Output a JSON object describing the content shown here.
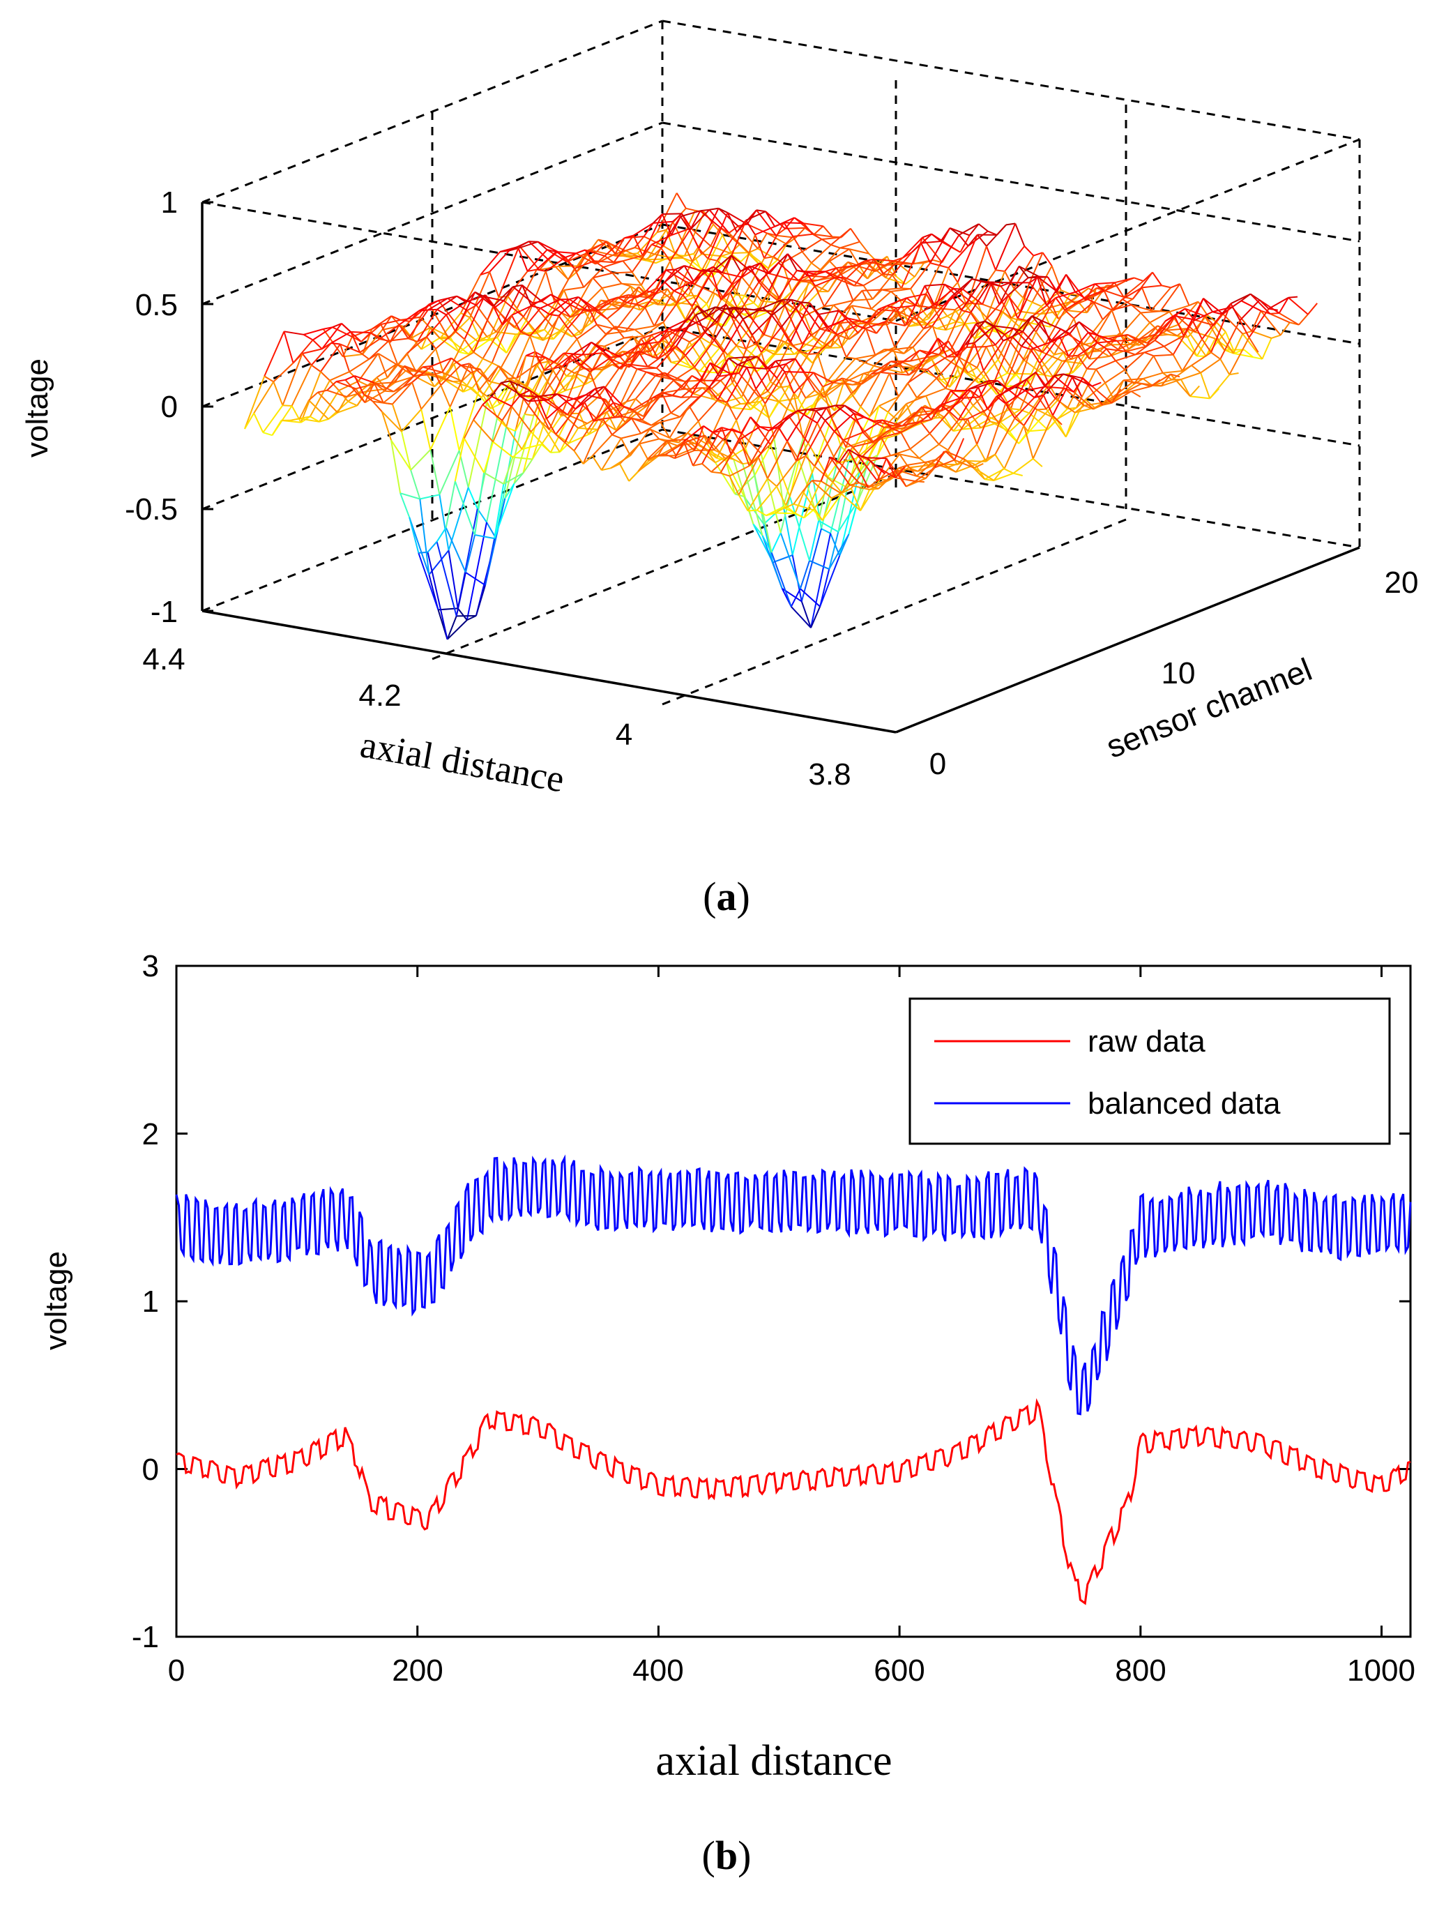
{
  "panel_a": {
    "caption": "(a)",
    "caption_letter": "a",
    "chart_data": {
      "type": "surface",
      "title": "",
      "zlabel": "voltage",
      "xlabel": "axial distance",
      "ylabel": "sensor channel",
      "z_ticks": [
        "1",
        "0.5",
        "0",
        "-0.5",
        "-1"
      ],
      "x_ticks": [
        "4.4",
        "4.2",
        "4",
        "3.8"
      ],
      "y_ticks": [
        "0",
        "10",
        "20"
      ],
      "zlim": [
        -1,
        1
      ],
      "xlim": [
        4.4,
        3.75
      ],
      "ylim": [
        0,
        22
      ],
      "colormap": "jet",
      "features": [
        {
          "x": 4.2,
          "channel": 2,
          "z": -0.9,
          "note": "deep dip"
        },
        {
          "x": 3.95,
          "channel": 6,
          "z": -0.7,
          "note": "dip"
        },
        {
          "x": 4.1,
          "channel": 8,
          "z": 0.3,
          "note": "peak"
        }
      ]
    }
  },
  "panel_b": {
    "caption": "(b)",
    "caption_letter": "b",
    "chart_data": {
      "type": "line",
      "title": "",
      "xlabel": "axial distance",
      "ylabel": "voltage",
      "xlim": [
        0,
        1024
      ],
      "ylim": [
        -1,
        3
      ],
      "x_ticks": [
        "0",
        "200",
        "400",
        "600",
        "800",
        "1000"
      ],
      "y_ticks": [
        "3",
        "2",
        "1",
        "0",
        "-1"
      ],
      "legend_position": "top-right",
      "series": [
        {
          "name": "raw data",
          "color": "#ff0000",
          "x": [
            0,
            50,
            100,
            140,
            150,
            160,
            200,
            210,
            240,
            260,
            300,
            350,
            400,
            450,
            500,
            550,
            600,
            650,
            700,
            715,
            730,
            745,
            755,
            770,
            790,
            800,
            850,
            900,
            950,
            1000,
            1024
          ],
          "values": [
            0.05,
            -0.05,
            0.05,
            0.2,
            0.05,
            -0.2,
            -0.3,
            -0.3,
            0.05,
            0.3,
            0.25,
            0.05,
            -0.1,
            -0.12,
            -0.08,
            -0.05,
            -0.02,
            0.1,
            0.3,
            0.35,
            -0.2,
            -0.7,
            -0.75,
            -0.5,
            -0.2,
            0.15,
            0.2,
            0.15,
            0.0,
            -0.1,
            0.0
          ]
        },
        {
          "name": "balanced data",
          "color": "#0000ff",
          "x": [
            0,
            50,
            100,
            140,
            150,
            160,
            200,
            210,
            240,
            260,
            300,
            350,
            400,
            450,
            500,
            550,
            600,
            650,
            700,
            715,
            730,
            745,
            755,
            770,
            790,
            800,
            850,
            900,
            950,
            1000,
            1024
          ],
          "values": [
            1.45,
            1.4,
            1.45,
            1.5,
            1.4,
            1.2,
            1.1,
            1.1,
            1.5,
            1.65,
            1.7,
            1.62,
            1.6,
            1.6,
            1.6,
            1.6,
            1.58,
            1.55,
            1.6,
            1.6,
            1.1,
            0.5,
            0.45,
            0.8,
            1.2,
            1.45,
            1.5,
            1.55,
            1.45,
            1.45,
            1.45
          ]
        }
      ]
    }
  }
}
